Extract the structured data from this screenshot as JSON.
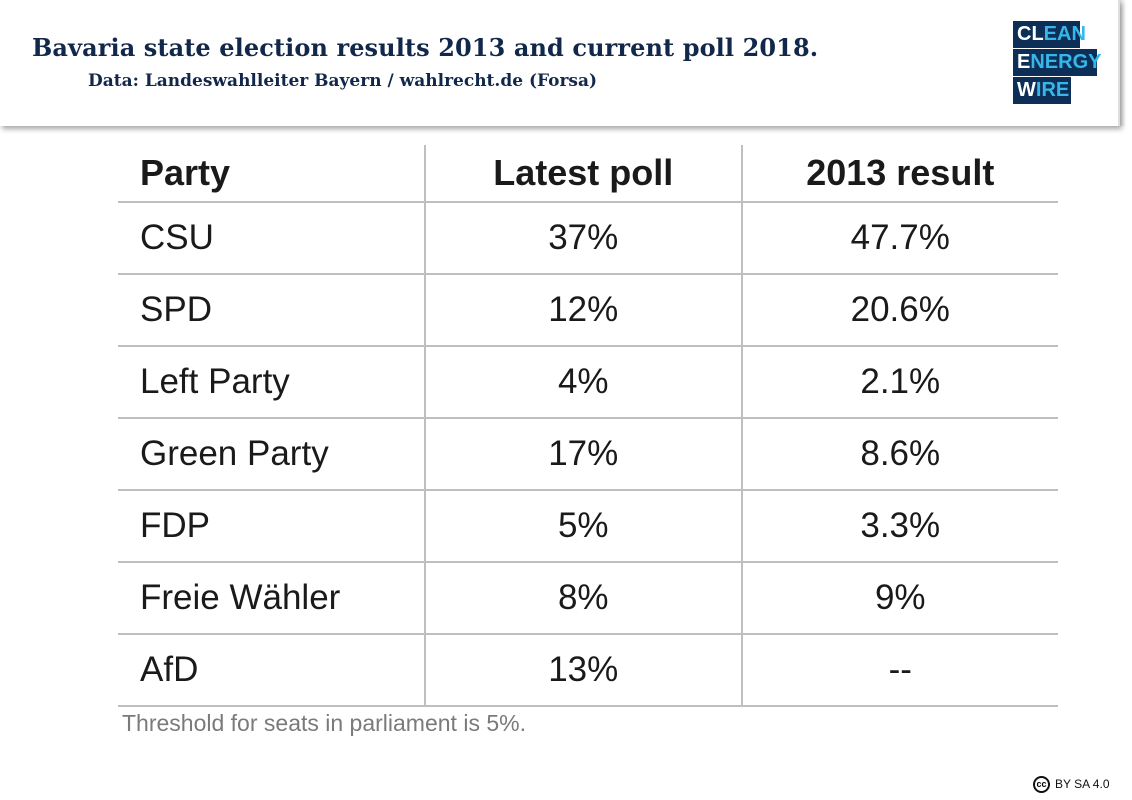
{
  "header": {
    "title": "Bavaria state election results 2013 and current poll 2018.",
    "subtitle": "Data: Landeswahlleiter Bayern / wahlrecht.de (Forsa)"
  },
  "logo": {
    "row1_main": "CL",
    "row1_accent": "EAN",
    "row2_main": "E",
    "row2_accent": "NERGY",
    "row3_main": "W",
    "row3_accent": "IRE",
    "colors": {
      "navy": "#0d2f57",
      "cyan": "#35b7ea"
    }
  },
  "chart_data": {
    "type": "table",
    "columns": [
      "Party",
      "Latest poll",
      "2013 result"
    ],
    "rows": [
      [
        "CSU",
        "37%",
        "47.7%"
      ],
      [
        "SPD",
        "12%",
        "20.6%"
      ],
      [
        "Left Party",
        "4%",
        "2.1%"
      ],
      [
        "Green Party",
        "17%",
        "8.6%"
      ],
      [
        "FDP",
        "5%",
        "3.3%"
      ],
      [
        "Freie Wähler",
        "8%",
        "9%"
      ],
      [
        "AfD",
        "13%",
        "--"
      ]
    ]
  },
  "note": "Threshold for seats in parliament is 5%.",
  "license": {
    "icon_label": "cc",
    "text": "BY SA 4.0"
  }
}
